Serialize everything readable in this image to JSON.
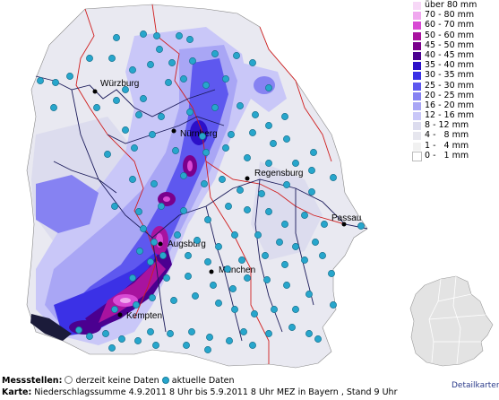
{
  "legend": [
    {
      "label": "über 80 mm",
      "color": "#f7d8f7"
    },
    {
      "label": "70 - 80 mm",
      "color": "#f0a8ef"
    },
    {
      "label": "60 - 70 mm",
      "color": "#d84ad4"
    },
    {
      "label": "50 - 60 mm",
      "color": "#a8139f"
    },
    {
      "label": "45 - 50 mm",
      "color": "#7a008c"
    },
    {
      "label": "40 - 45 mm",
      "color": "#4b0090"
    },
    {
      "label": "35 - 40 mm",
      "color": "#2c10c8"
    },
    {
      "label": "30 - 35 mm",
      "color": "#3b31e6"
    },
    {
      "label": "25 - 30 mm",
      "color": "#5e58ef"
    },
    {
      "label": "20 - 25 mm",
      "color": "#8682f2"
    },
    {
      "label": "16 - 20 mm",
      "color": "#a9a6f5"
    },
    {
      "label": "12 - 16 mm",
      "color": "#c9c7f8"
    },
    {
      "label": "8 - 12 mm",
      "color": "#dcdcee"
    },
    {
      "label": "4 -   8 mm",
      "color": "#e6e6ee"
    },
    {
      "label": "1 -   4 mm",
      "color": "#f1f1f1"
    },
    {
      "label": "0 -   1 mm",
      "color": "#ffffff"
    }
  ],
  "cities": [
    "Würzburg",
    "Nürnberg",
    "Regensburg",
    "Passau",
    "Augsburg",
    "München",
    "Kempten"
  ],
  "footer": {
    "stations_label": "Messstellen:",
    "no_data_label": "derzeit keine Daten",
    "current_data_label": "aktuelle Daten",
    "map_label": "Karte:",
    "map_text": "Niederschlagssumme 4.9.2011 8 Uhr bis 5.9.2011 8 Uhr MEZ in Bayern , Stand 9 Uhr"
  },
  "detail_link": "Detailkarten"
}
